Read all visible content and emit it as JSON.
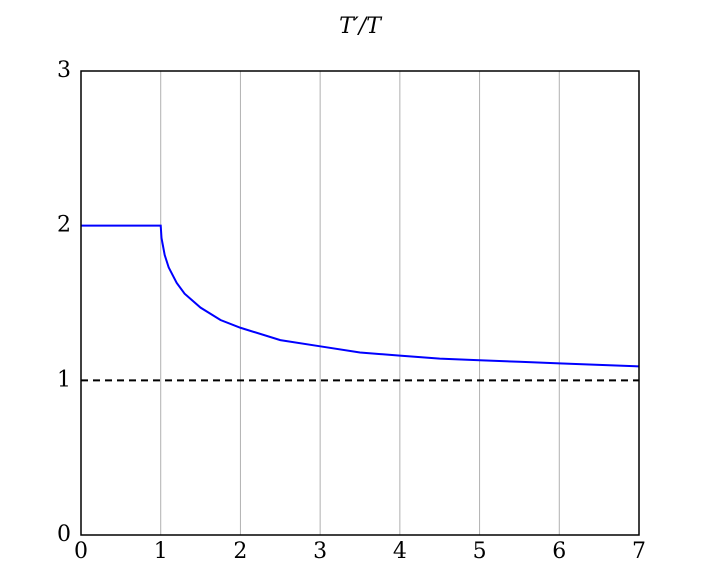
{
  "chart_data": {
    "type": "line",
    "title": "T′/T",
    "xlim": [
      0,
      7
    ],
    "xticks": [
      0,
      1,
      2,
      3,
      4,
      5,
      6,
      7
    ],
    "ylim": [
      0,
      3
    ],
    "yticks": [
      0,
      1,
      2,
      3
    ],
    "grid": "x",
    "series": [
      {
        "color": "#0000ff",
        "dash": false,
        "x": [
          0,
          1,
          1.01,
          1.05,
          1.1,
          1.2,
          1.3,
          1.5,
          1.75,
          2,
          2.5,
          3,
          3.5,
          4,
          4.5,
          5,
          5.5,
          6,
          6.5,
          7
        ],
        "values": [
          2,
          2,
          1.92,
          1.81,
          1.73,
          1.63,
          1.56,
          1.47,
          1.39,
          1.34,
          1.26,
          1.22,
          1.18,
          1.16,
          1.14,
          1.13,
          1.12,
          1.11,
          1.1,
          1.09
        ]
      },
      {
        "color": "#000000",
        "dash": true,
        "x": [
          0,
          7
        ],
        "values": [
          1,
          1
        ]
      }
    ]
  }
}
